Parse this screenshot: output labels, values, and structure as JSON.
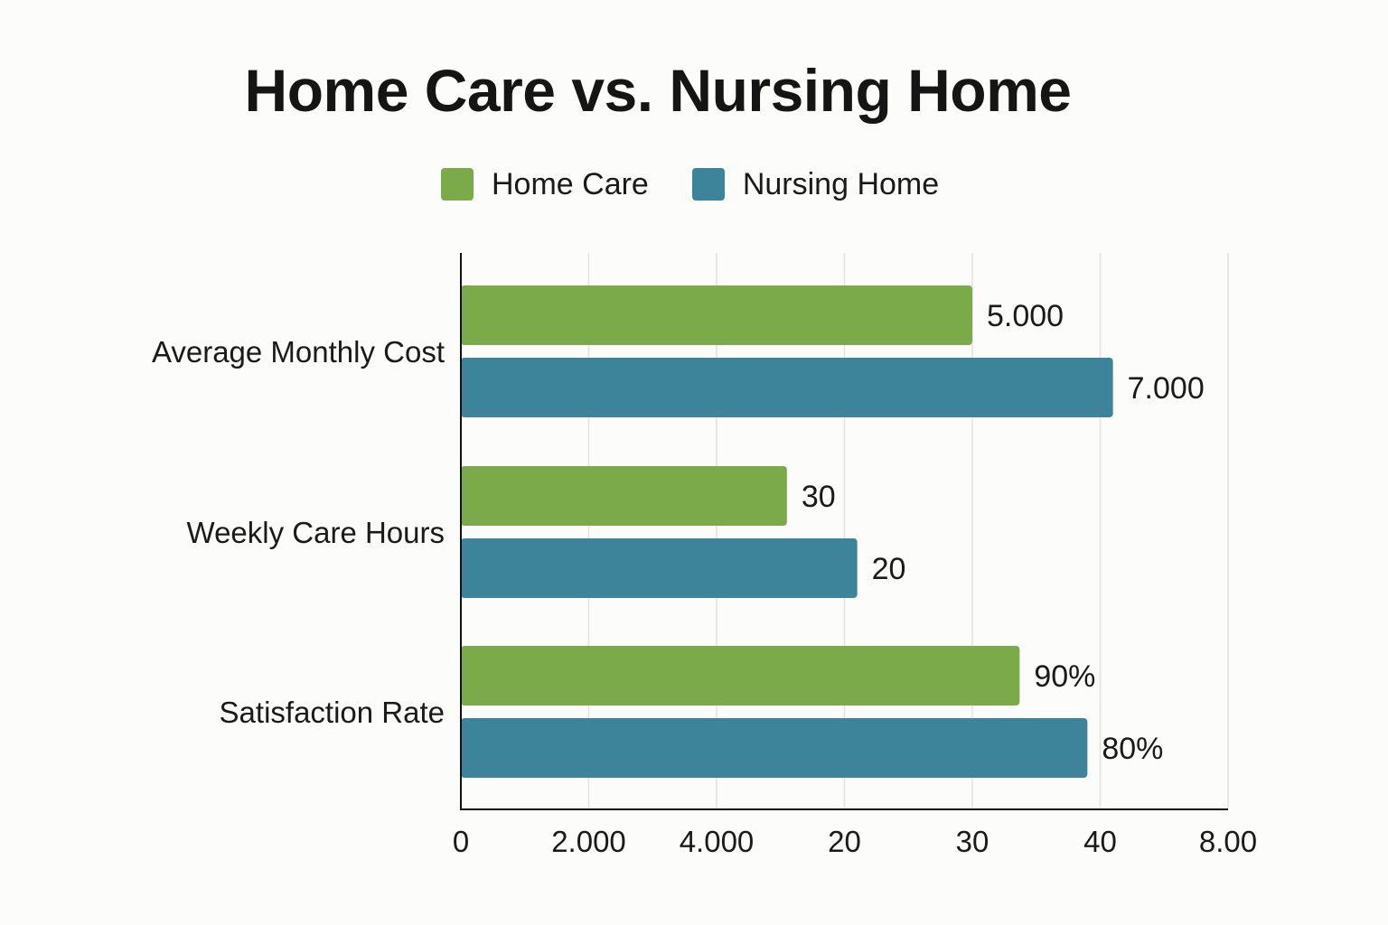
{
  "chart_data": {
    "type": "bar",
    "orientation": "horizontal",
    "title": "Home Care vs. Nursing Home",
    "categories": [
      "Average Monthly Cost",
      "Weekly Care Hours",
      "Satisfaction Rate"
    ],
    "series": [
      {
        "name": "Home Care",
        "color": "#7aaa4a",
        "values": [
          5000,
          30,
          90
        ],
        "value_labels": [
          "5.000",
          "30",
          "90%"
        ]
      },
      {
        "name": "Nursing Home",
        "color": "#3d8399",
        "values": [
          7000,
          20,
          80
        ],
        "value_labels": [
          "7.000",
          "20",
          "80%"
        ]
      }
    ],
    "x_tick_labels": [
      "0",
      "2.000",
      "4.000",
      "20",
      "30",
      "40",
      "8.00"
    ],
    "bar_extent_in_ticks": [
      [
        4,
        5.1
      ],
      [
        2.55,
        3.1
      ],
      [
        4.37,
        4.9
      ]
    ],
    "xlabel": "",
    "ylabel": "",
    "grid": "vertical",
    "legend_position": "top-center"
  }
}
